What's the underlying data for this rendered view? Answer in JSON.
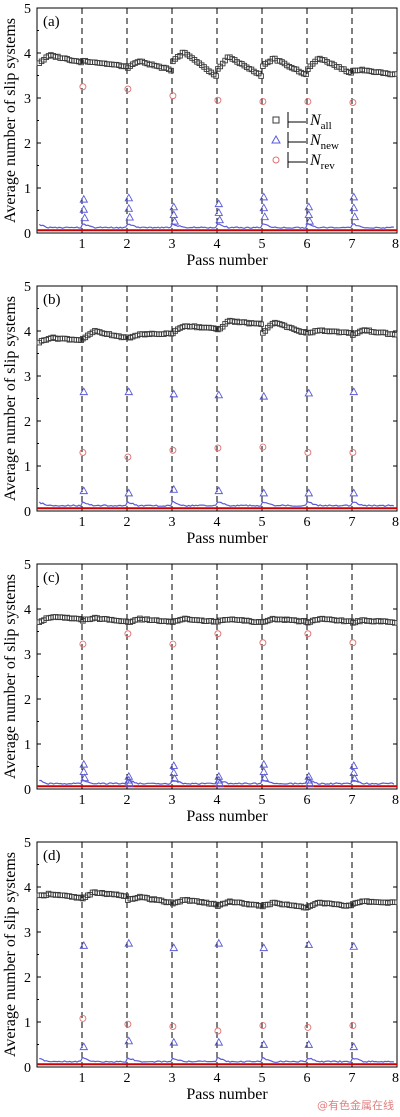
{
  "watermark": "@有色金属在线",
  "colors": {
    "all": "#3a3a3a",
    "new": "#5a5ad8",
    "rev": "#e07070",
    "baseline": "#cc0000"
  },
  "legend": {
    "all_main": "N",
    "all_sub": "all",
    "new_main": "N",
    "new_sub": "new",
    "rev_main": "N",
    "rev_sub": "rev"
  },
  "chart_data": [
    {
      "type": "scatter",
      "panel": "(a)",
      "xlabel": "Pass number",
      "ylabel": "Average number of slip systems",
      "xlim": [
        0,
        8
      ],
      "ylim": [
        0,
        5
      ],
      "xticks": [
        1,
        2,
        3,
        4,
        5,
        6,
        7,
        8
      ],
      "yticks": [
        0,
        1,
        2,
        3,
        4,
        5
      ],
      "pass_lines": [
        1,
        2,
        3,
        4,
        5,
        6,
        7
      ],
      "all": {
        "start": [
          3.78,
          3.83,
          3.68,
          3.82,
          3.65,
          3.72,
          3.65,
          3.62
        ],
        "peak": [
          3.95,
          3.8,
          3.82,
          4.02,
          3.92,
          3.88,
          3.9,
          3.62
        ],
        "end": [
          3.8,
          3.7,
          3.62,
          3.48,
          3.5,
          3.52,
          3.55,
          3.52
        ]
      },
      "new_peaks": [
        0.75,
        0.78,
        0.58,
        0.65,
        0.8,
        0.58,
        0.8
      ],
      "rev_points": [
        3.25,
        3.2,
        3.05,
        2.95,
        2.92,
        2.92,
        2.9
      ],
      "new_base": 0.12,
      "rev_base": 0.06,
      "show_legend": true
    },
    {
      "type": "scatter",
      "panel": "(b)",
      "xlabel": "Pass number",
      "ylabel": "Average number of slip systems",
      "xlim": [
        0,
        8
      ],
      "ylim": [
        0,
        5
      ],
      "xticks": [
        1,
        2,
        3,
        4,
        5,
        6,
        7,
        8
      ],
      "yticks": [
        0,
        1,
        2,
        3,
        4,
        5
      ],
      "pass_lines": [
        1,
        2,
        3,
        4,
        5,
        6,
        7
      ],
      "all": {
        "start": [
          3.75,
          3.82,
          3.85,
          3.95,
          4.02,
          3.95,
          3.95,
          3.92
        ],
        "peak": [
          3.85,
          4.0,
          3.92,
          4.12,
          4.22,
          4.2,
          4.02,
          4.02
        ],
        "end": [
          3.8,
          3.85,
          3.95,
          4.05,
          4.15,
          3.95,
          3.95,
          3.92
        ]
      },
      "new_peaks": [
        2.65,
        2.65,
        2.6,
        2.58,
        2.55,
        2.62,
        2.65
      ],
      "new_mid": [
        0.45,
        0.4,
        0.48,
        0.45,
        0.4,
        0.4,
        0.4
      ],
      "rev_points": [
        1.3,
        1.2,
        1.35,
        1.4,
        1.42,
        1.3,
        1.3
      ],
      "new_base": 0.12,
      "rev_base": 0.06,
      "show_legend": false
    },
    {
      "type": "scatter",
      "panel": "(c)",
      "xlabel": "Pass number",
      "ylabel": "Average number of slip systems",
      "xlim": [
        0,
        8
      ],
      "ylim": [
        0,
        5
      ],
      "xticks": [
        1,
        2,
        3,
        4,
        5,
        6,
        7,
        8
      ],
      "yticks": [
        0,
        1,
        2,
        3,
        4,
        5
      ],
      "pass_lines": [
        1,
        2,
        3,
        4,
        5,
        6,
        7
      ],
      "all": {
        "start": [
          3.72,
          3.75,
          3.7,
          3.72,
          3.72,
          3.7,
          3.7,
          3.7
        ],
        "peak": [
          3.82,
          3.8,
          3.78,
          3.78,
          3.78,
          3.78,
          3.78,
          3.75
        ],
        "end": [
          3.78,
          3.72,
          3.72,
          3.72,
          3.7,
          3.72,
          3.72,
          3.7
        ]
      },
      "new_peaks": [
        0.55,
        0.28,
        0.52,
        0.28,
        0.55,
        0.28,
        0.52
      ],
      "rev_points": [
        3.22,
        3.45,
        3.22,
        3.45,
        3.25,
        3.45,
        3.25
      ],
      "new_base": 0.12,
      "rev_base": 0.06,
      "show_legend": false
    },
    {
      "type": "scatter",
      "panel": "(d)",
      "xlabel": "Pass number",
      "ylabel": "Average number of slip systems",
      "xlim": [
        0,
        8
      ],
      "ylim": [
        0,
        5
      ],
      "xticks": [
        1,
        2,
        3,
        4,
        5,
        6,
        7,
        8
      ],
      "yticks": [
        0,
        1,
        2,
        3,
        4,
        5
      ],
      "pass_lines": [
        1,
        2,
        3,
        4,
        5,
        6,
        7
      ],
      "all": {
        "start": [
          3.8,
          3.75,
          3.72,
          3.62,
          3.58,
          3.58,
          3.55,
          3.62
        ],
        "peak": [
          3.85,
          3.88,
          3.78,
          3.72,
          3.68,
          3.65,
          3.65,
          3.68
        ],
        "end": [
          3.75,
          3.8,
          3.65,
          3.62,
          3.58,
          3.55,
          3.58,
          3.65
        ]
      },
      "new_peaks": [
        2.7,
        2.75,
        2.65,
        2.75,
        2.65,
        2.72,
        2.68
      ],
      "new_mid": [
        0.45,
        0.58,
        0.55,
        0.55,
        0.5,
        0.5,
        0.45
      ],
      "rev_points": [
        1.08,
        0.95,
        0.9,
        0.8,
        0.92,
        0.88,
        0.92
      ],
      "new_base": 0.12,
      "rev_base": 0.06,
      "show_legend": false
    }
  ]
}
